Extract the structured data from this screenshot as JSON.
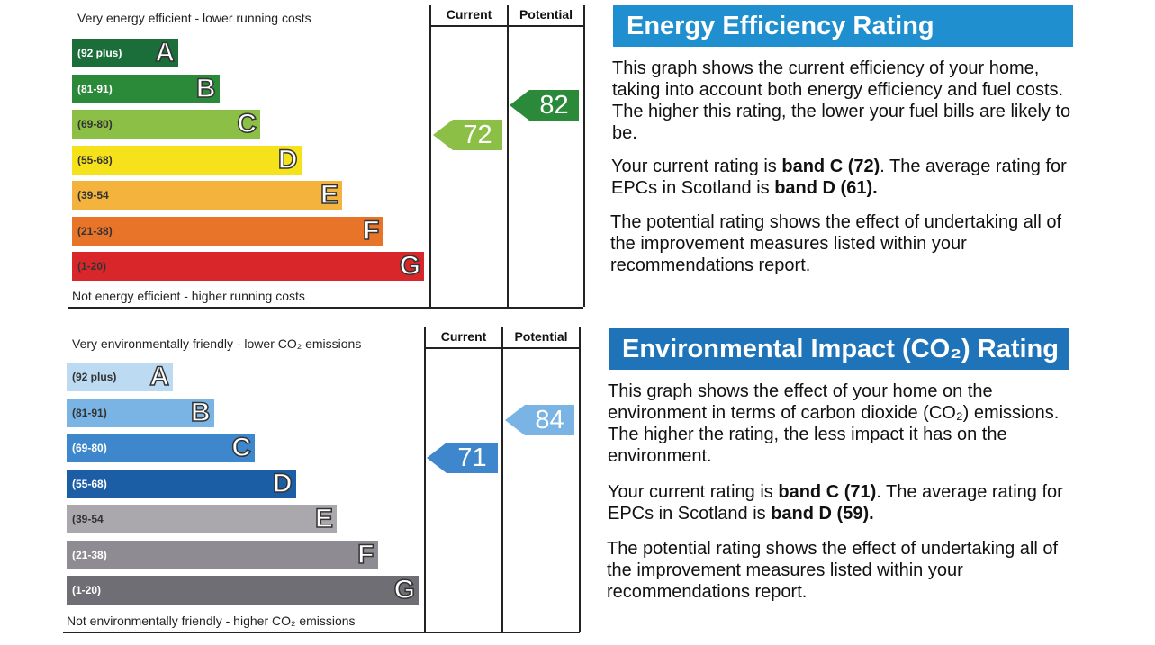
{
  "energy": {
    "top_caption": "Very energy efficient - lower running costs",
    "bottom_caption": "Not energy efficient - higher running costs",
    "current_header": "Current",
    "potential_header": "Potential",
    "bands": [
      {
        "range": "(92 plus)",
        "letter": "A",
        "color": "#1b6e3a",
        "text_color": "#ffffff"
      },
      {
        "range": "(81-91)",
        "letter": "B",
        "color": "#2b8a3a",
        "text_color": "#ffffff"
      },
      {
        "range": "(69-80)",
        "letter": "C",
        "color": "#8cbf45",
        "text_color": "#333333"
      },
      {
        "range": "(55-68)",
        "letter": "D",
        "color": "#f5e21b",
        "text_color": "#333333"
      },
      {
        "range": "(39-54",
        "letter": "E",
        "color": "#f3b33c",
        "text_color": "#333333"
      },
      {
        "range": "(21-38)",
        "letter": "F",
        "color": "#e8742a",
        "text_color": "#333333"
      },
      {
        "range": "(1-20)",
        "letter": "G",
        "color": "#d9262b",
        "text_color": "#333333"
      }
    ],
    "current": {
      "value": "72",
      "color": "#8cbf45"
    },
    "potential": {
      "value": "82",
      "color": "#2b8a3a"
    },
    "header": "Energy Efficiency Rating",
    "header_color": "#1f8fcf",
    "p1": "This graph shows the current efficiency of your home, taking into account both energy efficiency and fuel costs. The higher this rating, the lower your fuel bills are likely to be.",
    "p2_prefix": "Your current rating is ",
    "p2_bold1": "band C (72)",
    "p2_mid": ". The average rating for EPCs in Scotland is ",
    "p2_bold2": "band D (61).",
    "p3": "The potential rating shows the effect of undertaking all of the improvement measures listed within your recommendations report."
  },
  "environment": {
    "top_caption": "Very environmentally friendly - lower CO₂ emissions",
    "bottom_caption": "Not environmentally friendly - higher CO₂ emissions",
    "current_header": "Current",
    "potential_header": "Potential",
    "bands": [
      {
        "range": "(92 plus)",
        "letter": "A",
        "color": "#bcdaf2",
        "text_color": "#333333"
      },
      {
        "range": "(81-91)",
        "letter": "B",
        "color": "#79b4e4",
        "text_color": "#333333"
      },
      {
        "range": "(69-80)",
        "letter": "C",
        "color": "#3f87cc",
        "text_color": "#ffffff"
      },
      {
        "range": "(55-68)",
        "letter": "D",
        "color": "#1c5ea6",
        "text_color": "#ffffff"
      },
      {
        "range": "(39-54",
        "letter": "E",
        "color": "#aaa8ac",
        "text_color": "#333333"
      },
      {
        "range": "(21-38)",
        "letter": "F",
        "color": "#8e8c92",
        "text_color": "#ffffff"
      },
      {
        "range": "(1-20)",
        "letter": "G",
        "color": "#6f6e74",
        "text_color": "#ffffff"
      }
    ],
    "current": {
      "value": "71",
      "color": "#3f87cc"
    },
    "potential": {
      "value": "84",
      "color": "#79b4e4"
    },
    "header": "Environmental Impact (CO₂) Rating",
    "header_color": "#1f73b8",
    "p1": "This graph shows the effect of your home on the environment in terms of carbon dioxide (CO₂) emissions. The higher the rating, the less impact it has on the environment.",
    "p2_prefix": "Your current rating is ",
    "p2_bold1": "band C (71)",
    "p2_mid": ". The average rating for EPCs in Scotland is ",
    "p2_bold2": "band D (59).",
    "p3": "The potential rating shows the effect of undertaking all of the improvement measures listed within your recommendations report."
  }
}
